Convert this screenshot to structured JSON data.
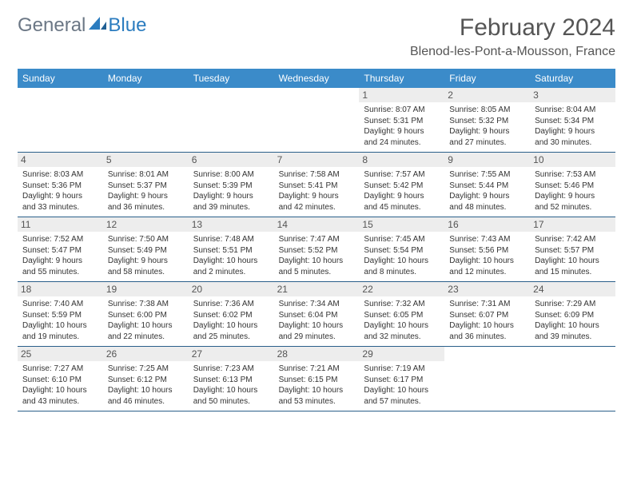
{
  "brand": {
    "part1": "General",
    "part2": "Blue"
  },
  "title": "February 2024",
  "location": "Blenod-les-Pont-a-Mousson, France",
  "colors": {
    "header_bg": "#3b8bc9",
    "header_text": "#ffffff",
    "daynum_bg": "#ededed",
    "border": "#2a5f8a",
    "text": "#333333",
    "logo_gray": "#6b7785",
    "logo_blue": "#2b7cbf",
    "page_bg": "#ffffff"
  },
  "dayNames": [
    "Sunday",
    "Monday",
    "Tuesday",
    "Wednesday",
    "Thursday",
    "Friday",
    "Saturday"
  ],
  "weeks": [
    [
      null,
      null,
      null,
      null,
      {
        "n": "1",
        "sr": "Sunrise: 8:07 AM",
        "ss": "Sunset: 5:31 PM",
        "dl1": "Daylight: 9 hours",
        "dl2": "and 24 minutes."
      },
      {
        "n": "2",
        "sr": "Sunrise: 8:05 AM",
        "ss": "Sunset: 5:32 PM",
        "dl1": "Daylight: 9 hours",
        "dl2": "and 27 minutes."
      },
      {
        "n": "3",
        "sr": "Sunrise: 8:04 AM",
        "ss": "Sunset: 5:34 PM",
        "dl1": "Daylight: 9 hours",
        "dl2": "and 30 minutes."
      }
    ],
    [
      {
        "n": "4",
        "sr": "Sunrise: 8:03 AM",
        "ss": "Sunset: 5:36 PM",
        "dl1": "Daylight: 9 hours",
        "dl2": "and 33 minutes."
      },
      {
        "n": "5",
        "sr": "Sunrise: 8:01 AM",
        "ss": "Sunset: 5:37 PM",
        "dl1": "Daylight: 9 hours",
        "dl2": "and 36 minutes."
      },
      {
        "n": "6",
        "sr": "Sunrise: 8:00 AM",
        "ss": "Sunset: 5:39 PM",
        "dl1": "Daylight: 9 hours",
        "dl2": "and 39 minutes."
      },
      {
        "n": "7",
        "sr": "Sunrise: 7:58 AM",
        "ss": "Sunset: 5:41 PM",
        "dl1": "Daylight: 9 hours",
        "dl2": "and 42 minutes."
      },
      {
        "n": "8",
        "sr": "Sunrise: 7:57 AM",
        "ss": "Sunset: 5:42 PM",
        "dl1": "Daylight: 9 hours",
        "dl2": "and 45 minutes."
      },
      {
        "n": "9",
        "sr": "Sunrise: 7:55 AM",
        "ss": "Sunset: 5:44 PM",
        "dl1": "Daylight: 9 hours",
        "dl2": "and 48 minutes."
      },
      {
        "n": "10",
        "sr": "Sunrise: 7:53 AM",
        "ss": "Sunset: 5:46 PM",
        "dl1": "Daylight: 9 hours",
        "dl2": "and 52 minutes."
      }
    ],
    [
      {
        "n": "11",
        "sr": "Sunrise: 7:52 AM",
        "ss": "Sunset: 5:47 PM",
        "dl1": "Daylight: 9 hours",
        "dl2": "and 55 minutes."
      },
      {
        "n": "12",
        "sr": "Sunrise: 7:50 AM",
        "ss": "Sunset: 5:49 PM",
        "dl1": "Daylight: 9 hours",
        "dl2": "and 58 minutes."
      },
      {
        "n": "13",
        "sr": "Sunrise: 7:48 AM",
        "ss": "Sunset: 5:51 PM",
        "dl1": "Daylight: 10 hours",
        "dl2": "and 2 minutes."
      },
      {
        "n": "14",
        "sr": "Sunrise: 7:47 AM",
        "ss": "Sunset: 5:52 PM",
        "dl1": "Daylight: 10 hours",
        "dl2": "and 5 minutes."
      },
      {
        "n": "15",
        "sr": "Sunrise: 7:45 AM",
        "ss": "Sunset: 5:54 PM",
        "dl1": "Daylight: 10 hours",
        "dl2": "and 8 minutes."
      },
      {
        "n": "16",
        "sr": "Sunrise: 7:43 AM",
        "ss": "Sunset: 5:56 PM",
        "dl1": "Daylight: 10 hours",
        "dl2": "and 12 minutes."
      },
      {
        "n": "17",
        "sr": "Sunrise: 7:42 AM",
        "ss": "Sunset: 5:57 PM",
        "dl1": "Daylight: 10 hours",
        "dl2": "and 15 minutes."
      }
    ],
    [
      {
        "n": "18",
        "sr": "Sunrise: 7:40 AM",
        "ss": "Sunset: 5:59 PM",
        "dl1": "Daylight: 10 hours",
        "dl2": "and 19 minutes."
      },
      {
        "n": "19",
        "sr": "Sunrise: 7:38 AM",
        "ss": "Sunset: 6:00 PM",
        "dl1": "Daylight: 10 hours",
        "dl2": "and 22 minutes."
      },
      {
        "n": "20",
        "sr": "Sunrise: 7:36 AM",
        "ss": "Sunset: 6:02 PM",
        "dl1": "Daylight: 10 hours",
        "dl2": "and 25 minutes."
      },
      {
        "n": "21",
        "sr": "Sunrise: 7:34 AM",
        "ss": "Sunset: 6:04 PM",
        "dl1": "Daylight: 10 hours",
        "dl2": "and 29 minutes."
      },
      {
        "n": "22",
        "sr": "Sunrise: 7:32 AM",
        "ss": "Sunset: 6:05 PM",
        "dl1": "Daylight: 10 hours",
        "dl2": "and 32 minutes."
      },
      {
        "n": "23",
        "sr": "Sunrise: 7:31 AM",
        "ss": "Sunset: 6:07 PM",
        "dl1": "Daylight: 10 hours",
        "dl2": "and 36 minutes."
      },
      {
        "n": "24",
        "sr": "Sunrise: 7:29 AM",
        "ss": "Sunset: 6:09 PM",
        "dl1": "Daylight: 10 hours",
        "dl2": "and 39 minutes."
      }
    ],
    [
      {
        "n": "25",
        "sr": "Sunrise: 7:27 AM",
        "ss": "Sunset: 6:10 PM",
        "dl1": "Daylight: 10 hours",
        "dl2": "and 43 minutes."
      },
      {
        "n": "26",
        "sr": "Sunrise: 7:25 AM",
        "ss": "Sunset: 6:12 PM",
        "dl1": "Daylight: 10 hours",
        "dl2": "and 46 minutes."
      },
      {
        "n": "27",
        "sr": "Sunrise: 7:23 AM",
        "ss": "Sunset: 6:13 PM",
        "dl1": "Daylight: 10 hours",
        "dl2": "and 50 minutes."
      },
      {
        "n": "28",
        "sr": "Sunrise: 7:21 AM",
        "ss": "Sunset: 6:15 PM",
        "dl1": "Daylight: 10 hours",
        "dl2": "and 53 minutes."
      },
      {
        "n": "29",
        "sr": "Sunrise: 7:19 AM",
        "ss": "Sunset: 6:17 PM",
        "dl1": "Daylight: 10 hours",
        "dl2": "and 57 minutes."
      },
      null,
      null
    ]
  ]
}
